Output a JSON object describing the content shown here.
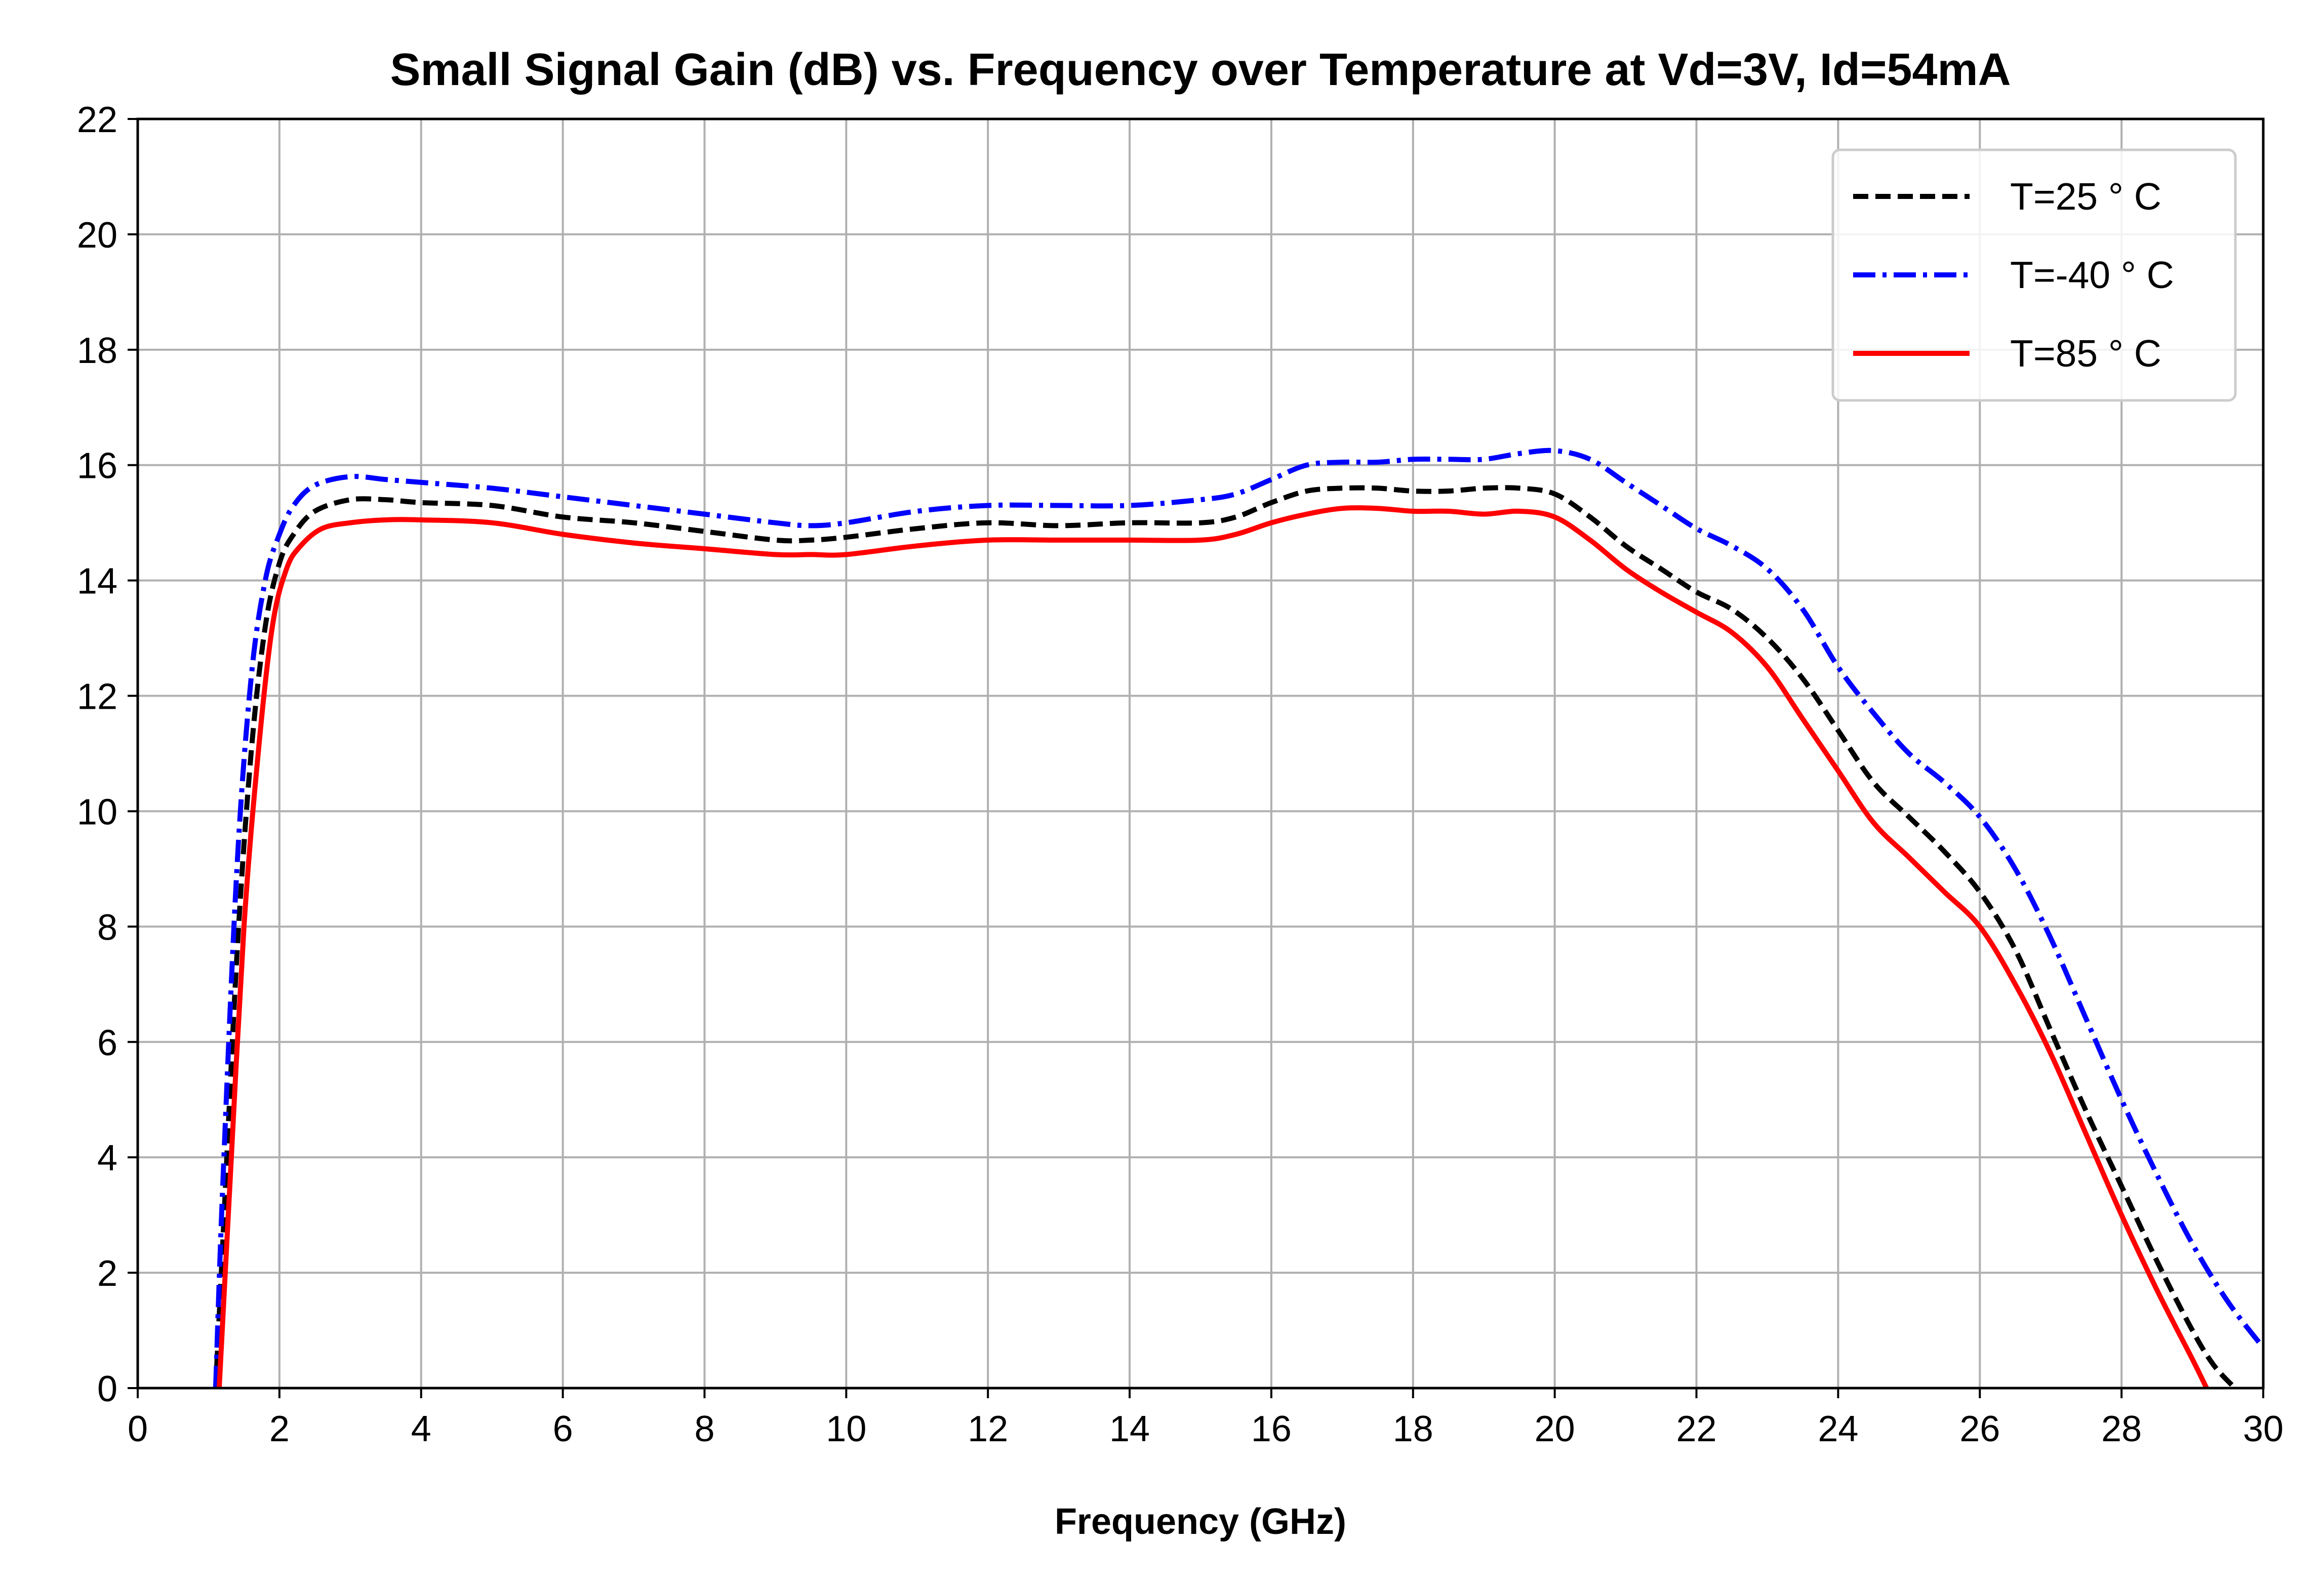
{
  "chart_data": {
    "type": "line",
    "title": "Small Signal Gain (dB) vs. Frequency over Temperature at Vd=3V, Id=54mA",
    "xlabel": "Frequency (GHz)",
    "ylabel": "",
    "xlim": [
      0,
      30
    ],
    "ylim": [
      0,
      22
    ],
    "xticks": [
      0,
      2,
      4,
      6,
      8,
      10,
      12,
      14,
      16,
      18,
      20,
      22,
      24,
      26,
      28,
      30
    ],
    "yticks": [
      0,
      2,
      4,
      6,
      8,
      10,
      12,
      14,
      16,
      18,
      20,
      22
    ],
    "grid": true,
    "legend_position": "top-right",
    "series": [
      {
        "name": "T=25 ° C",
        "color": "#000000",
        "dash": "dashed",
        "x": [
          1.1,
          1.2,
          1.4,
          1.6,
          1.8,
          2.0,
          2.2,
          2.5,
          3.0,
          3.5,
          4.0,
          5.0,
          6.0,
          7.0,
          8.0,
          9.0,
          9.5,
          10.0,
          11.0,
          12.0,
          13.0,
          14.0,
          15.0,
          15.5,
          16.0,
          16.5,
          17.0,
          17.5,
          18.0,
          18.5,
          19.0,
          19.5,
          20.0,
          20.5,
          21.0,
          21.5,
          22.0,
          22.5,
          23.0,
          23.5,
          24.0,
          24.5,
          25.0,
          25.5,
          26.0,
          26.5,
          27.0,
          27.5,
          28.0,
          28.5,
          29.0,
          29.3,
          29.6
        ],
        "y": [
          0.0,
          2.5,
          7.5,
          11.0,
          13.2,
          14.3,
          14.8,
          15.2,
          15.4,
          15.4,
          15.35,
          15.3,
          15.1,
          15.0,
          14.85,
          14.7,
          14.7,
          14.75,
          14.9,
          15.0,
          14.95,
          15.0,
          15.0,
          15.1,
          15.35,
          15.55,
          15.6,
          15.6,
          15.55,
          15.55,
          15.6,
          15.6,
          15.5,
          15.1,
          14.6,
          14.2,
          13.8,
          13.5,
          13.0,
          12.3,
          11.4,
          10.5,
          9.9,
          9.3,
          8.6,
          7.6,
          6.2,
          4.8,
          3.5,
          2.2,
          1.0,
          0.4,
          0.0
        ]
      },
      {
        "name": "T=-40 ° C",
        "color": "#0000ff",
        "dash": "dashdot",
        "x": [
          1.1,
          1.2,
          1.4,
          1.6,
          1.8,
          2.0,
          2.2,
          2.5,
          3.0,
          3.5,
          4.0,
          5.0,
          6.0,
          7.0,
          8.0,
          9.0,
          9.5,
          10.0,
          11.0,
          12.0,
          13.0,
          14.0,
          15.0,
          15.5,
          16.0,
          16.5,
          17.0,
          17.5,
          18.0,
          18.5,
          19.0,
          19.5,
          20.0,
          20.5,
          21.0,
          21.5,
          22.0,
          22.5,
          23.0,
          23.5,
          24.0,
          24.5,
          25.0,
          25.5,
          26.0,
          26.5,
          27.0,
          27.5,
          28.0,
          28.5,
          29.0,
          29.5,
          30.0
        ],
        "y": [
          0.0,
          3.5,
          9.0,
          12.3,
          14.0,
          14.8,
          15.3,
          15.65,
          15.8,
          15.75,
          15.7,
          15.6,
          15.45,
          15.3,
          15.15,
          15.0,
          14.95,
          15.0,
          15.2,
          15.3,
          15.3,
          15.3,
          15.4,
          15.5,
          15.75,
          16.0,
          16.05,
          16.05,
          16.1,
          16.1,
          16.1,
          16.2,
          16.25,
          16.1,
          15.7,
          15.3,
          14.9,
          14.6,
          14.2,
          13.5,
          12.5,
          11.7,
          11.0,
          10.5,
          9.9,
          9.0,
          7.8,
          6.4,
          5.0,
          3.7,
          2.5,
          1.5,
          0.7
        ]
      },
      {
        "name": "T=85 ° C",
        "color": "#ff0000",
        "dash": "solid",
        "x": [
          1.15,
          1.3,
          1.5,
          1.7,
          1.9,
          2.1,
          2.3,
          2.6,
          3.0,
          3.5,
          4.0,
          5.0,
          6.0,
          7.0,
          8.0,
          9.0,
          9.5,
          10.0,
          11.0,
          12.0,
          13.0,
          14.0,
          15.0,
          15.5,
          16.0,
          16.5,
          17.0,
          17.5,
          18.0,
          18.5,
          19.0,
          19.5,
          20.0,
          20.5,
          21.0,
          21.5,
          22.0,
          22.5,
          23.0,
          23.5,
          24.0,
          24.5,
          25.0,
          25.5,
          26.0,
          26.5,
          27.0,
          27.5,
          28.0,
          28.5,
          29.0,
          29.2
        ],
        "y": [
          0.0,
          3.5,
          8.0,
          11.0,
          13.2,
          14.2,
          14.6,
          14.9,
          15.0,
          15.05,
          15.05,
          15.0,
          14.8,
          14.65,
          14.55,
          14.45,
          14.45,
          14.45,
          14.6,
          14.7,
          14.7,
          14.7,
          14.7,
          14.8,
          15.0,
          15.15,
          15.25,
          15.25,
          15.2,
          15.2,
          15.15,
          15.2,
          15.1,
          14.7,
          14.2,
          13.8,
          13.45,
          13.1,
          12.5,
          11.6,
          10.7,
          9.8,
          9.2,
          8.6,
          8.0,
          7.0,
          5.8,
          4.4,
          3.0,
          1.7,
          0.5,
          0.0
        ]
      }
    ]
  }
}
